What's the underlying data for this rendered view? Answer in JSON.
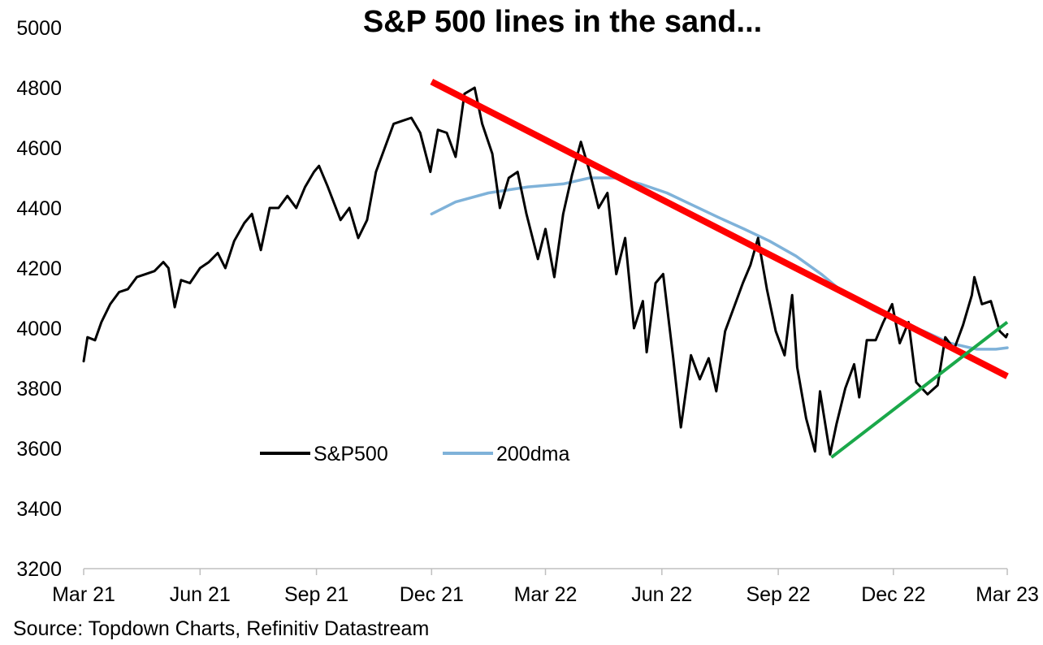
{
  "title": "S&P 500 lines in the sand...",
  "source": "Source: Topdown Charts, Refinitiv Datastream",
  "chart_data": {
    "type": "line",
    "title": "S&P 500 lines in the sand...",
    "xlabel": "",
    "ylabel": "",
    "ylim": [
      3200,
      5000
    ],
    "yticks": [
      3200,
      3400,
      3600,
      3800,
      4000,
      4200,
      4400,
      4600,
      4800,
      5000
    ],
    "xlim": [
      "2021-03-01",
      "2023-03-01"
    ],
    "xticks": [
      {
        "date": "2021-03-01",
        "label": "Mar 21"
      },
      {
        "date": "2021-06-01",
        "label": "Jun 21"
      },
      {
        "date": "2021-09-01",
        "label": "Sep 21"
      },
      {
        "date": "2021-12-01",
        "label": "Dec 21"
      },
      {
        "date": "2022-03-01",
        "label": "Mar 22"
      },
      {
        "date": "2022-06-01",
        "label": "Jun 22"
      },
      {
        "date": "2022-09-01",
        "label": "Sep 22"
      },
      {
        "date": "2022-12-01",
        "label": "Dec 22"
      },
      {
        "date": "2023-03-01",
        "label": "Mar 23"
      }
    ],
    "grid": false,
    "legend": {
      "position": "bottom-left inside plot"
    },
    "series": [
      {
        "name": "S&P500",
        "color": "#000000",
        "points": [
          [
            "2021-03-01",
            3890
          ],
          [
            "2021-03-04",
            3970
          ],
          [
            "2021-03-10",
            3960
          ],
          [
            "2021-03-15",
            4020
          ],
          [
            "2021-03-22",
            4080
          ],
          [
            "2021-03-29",
            4120
          ],
          [
            "2021-04-05",
            4130
          ],
          [
            "2021-04-12",
            4170
          ],
          [
            "2021-04-19",
            4180
          ],
          [
            "2021-04-26",
            4190
          ],
          [
            "2021-05-03",
            4220
          ],
          [
            "2021-05-07",
            4200
          ],
          [
            "2021-05-12",
            4070
          ],
          [
            "2021-05-17",
            4160
          ],
          [
            "2021-05-24",
            4150
          ],
          [
            "2021-06-01",
            4200
          ],
          [
            "2021-06-08",
            4220
          ],
          [
            "2021-06-15",
            4250
          ],
          [
            "2021-06-21",
            4200
          ],
          [
            "2021-06-28",
            4290
          ],
          [
            "2021-07-06",
            4350
          ],
          [
            "2021-07-12",
            4380
          ],
          [
            "2021-07-19",
            4260
          ],
          [
            "2021-07-26",
            4400
          ],
          [
            "2021-08-02",
            4400
          ],
          [
            "2021-08-09",
            4440
          ],
          [
            "2021-08-16",
            4400
          ],
          [
            "2021-08-23",
            4470
          ],
          [
            "2021-08-30",
            4520
          ],
          [
            "2021-09-03",
            4540
          ],
          [
            "2021-09-10",
            4470
          ],
          [
            "2021-09-20",
            4360
          ],
          [
            "2021-09-27",
            4400
          ],
          [
            "2021-10-04",
            4300
          ],
          [
            "2021-10-11",
            4360
          ],
          [
            "2021-10-18",
            4520
          ],
          [
            "2021-10-25",
            4600
          ],
          [
            "2021-11-01",
            4680
          ],
          [
            "2021-11-08",
            4690
          ],
          [
            "2021-11-15",
            4700
          ],
          [
            "2021-11-22",
            4650
          ],
          [
            "2021-11-30",
            4520
          ],
          [
            "2021-12-06",
            4660
          ],
          [
            "2021-12-13",
            4650
          ],
          [
            "2021-12-20",
            4570
          ],
          [
            "2021-12-27",
            4780
          ],
          [
            "2022-01-04",
            4800
          ],
          [
            "2022-01-10",
            4680
          ],
          [
            "2022-01-18",
            4580
          ],
          [
            "2022-01-24",
            4400
          ],
          [
            "2022-01-31",
            4500
          ],
          [
            "2022-02-07",
            4520
          ],
          [
            "2022-02-14",
            4380
          ],
          [
            "2022-02-23",
            4230
          ],
          [
            "2022-03-01",
            4330
          ],
          [
            "2022-03-08",
            4170
          ],
          [
            "2022-03-15",
            4380
          ],
          [
            "2022-03-22",
            4510
          ],
          [
            "2022-03-29",
            4620
          ],
          [
            "2022-04-05",
            4520
          ],
          [
            "2022-04-12",
            4400
          ],
          [
            "2022-04-19",
            4450
          ],
          [
            "2022-04-26",
            4180
          ],
          [
            "2022-05-03",
            4300
          ],
          [
            "2022-05-10",
            4000
          ],
          [
            "2022-05-17",
            4090
          ],
          [
            "2022-05-20",
            3920
          ],
          [
            "2022-05-27",
            4150
          ],
          [
            "2022-06-02",
            4180
          ],
          [
            "2022-06-10",
            3900
          ],
          [
            "2022-06-16",
            3670
          ],
          [
            "2022-06-24",
            3910
          ],
          [
            "2022-07-01",
            3830
          ],
          [
            "2022-07-08",
            3900
          ],
          [
            "2022-07-14",
            3790
          ],
          [
            "2022-07-21",
            3990
          ],
          [
            "2022-07-28",
            4070
          ],
          [
            "2022-08-04",
            4150
          ],
          [
            "2022-08-10",
            4210
          ],
          [
            "2022-08-16",
            4300
          ],
          [
            "2022-08-23",
            4130
          ],
          [
            "2022-08-30",
            3990
          ],
          [
            "2022-09-06",
            3910
          ],
          [
            "2022-09-12",
            4110
          ],
          [
            "2022-09-16",
            3870
          ],
          [
            "2022-09-23",
            3700
          ],
          [
            "2022-09-30",
            3590
          ],
          [
            "2022-10-04",
            3790
          ],
          [
            "2022-10-12",
            3580
          ],
          [
            "2022-10-17",
            3680
          ],
          [
            "2022-10-24",
            3800
          ],
          [
            "2022-10-31",
            3880
          ],
          [
            "2022-11-04",
            3770
          ],
          [
            "2022-11-10",
            3960
          ],
          [
            "2022-11-17",
            3960
          ],
          [
            "2022-11-23",
            4020
          ],
          [
            "2022-11-30",
            4080
          ],
          [
            "2022-12-06",
            3950
          ],
          [
            "2022-12-13",
            4020
          ],
          [
            "2022-12-19",
            3820
          ],
          [
            "2022-12-28",
            3780
          ],
          [
            "2023-01-05",
            3810
          ],
          [
            "2023-01-11",
            3970
          ],
          [
            "2023-01-18",
            3930
          ],
          [
            "2023-01-25",
            4010
          ],
          [
            "2023-02-01",
            4110
          ],
          [
            "2023-02-03",
            4170
          ],
          [
            "2023-02-09",
            4080
          ],
          [
            "2023-02-16",
            4090
          ],
          [
            "2023-02-23",
            3990
          ],
          [
            "2023-02-28",
            3970
          ],
          [
            "2023-03-01",
            3980
          ]
        ]
      },
      {
        "name": "200dma",
        "color": "#7fb2d9",
        "points": [
          [
            "2021-12-01",
            4380
          ],
          [
            "2021-12-20",
            4420
          ],
          [
            "2022-01-15",
            4450
          ],
          [
            "2022-02-15",
            4470
          ],
          [
            "2022-03-15",
            4480
          ],
          [
            "2022-04-05",
            4500
          ],
          [
            "2022-04-25",
            4500
          ],
          [
            "2022-05-15",
            4480
          ],
          [
            "2022-06-05",
            4450
          ],
          [
            "2022-06-25",
            4410
          ],
          [
            "2022-07-15",
            4370
          ],
          [
            "2022-08-05",
            4330
          ],
          [
            "2022-08-25",
            4290
          ],
          [
            "2022-09-15",
            4240
          ],
          [
            "2022-10-05",
            4180
          ],
          [
            "2022-10-25",
            4110
          ],
          [
            "2022-11-15",
            4060
          ],
          [
            "2022-12-05",
            4020
          ],
          [
            "2022-12-25",
            3990
          ],
          [
            "2023-01-15",
            3950
          ],
          [
            "2023-02-05",
            3930
          ],
          [
            "2023-02-20",
            3930
          ],
          [
            "2023-03-01",
            3935
          ]
        ]
      }
    ],
    "annotations": [
      {
        "type": "trendline",
        "color": "#ff0000",
        "from": [
          "2021-12-01",
          4820
        ],
        "to": [
          "2023-03-01",
          3840
        ]
      },
      {
        "type": "trendline",
        "color": "#1aa84a",
        "from": [
          "2022-10-13",
          3570
        ],
        "to": [
          "2023-03-01",
          4020
        ]
      }
    ]
  }
}
